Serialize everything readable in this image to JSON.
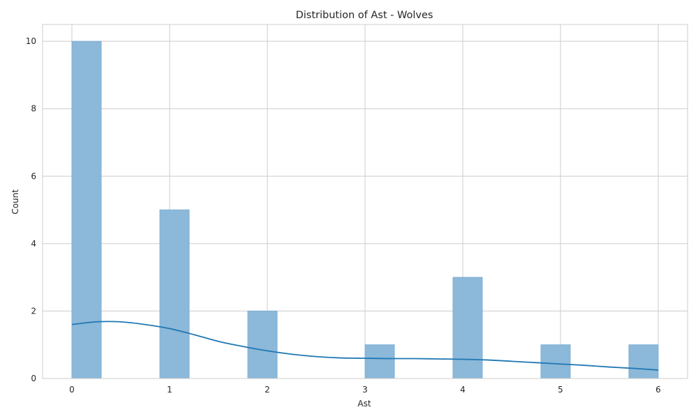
{
  "chart_data": {
    "type": "bar",
    "title": "Distribution of Ast - Wolves",
    "xlabel": "Ast",
    "ylabel": "Count",
    "xlim": [
      -0.3,
      6.3
    ],
    "ylim": [
      0,
      10.5
    ],
    "x_ticks": [
      "0",
      "1",
      "2",
      "3",
      "4",
      "5",
      "6"
    ],
    "y_ticks": [
      "0",
      "2",
      "4",
      "6",
      "8",
      "10"
    ],
    "grid": true,
    "bins": [
      {
        "x0": 0.0,
        "x1": 0.3,
        "value": 10
      },
      {
        "x0": 0.9,
        "x1": 1.2,
        "value": 5
      },
      {
        "x0": 1.8,
        "x1": 2.1,
        "value": 2
      },
      {
        "x0": 3.0,
        "x1": 3.3,
        "value": 1
      },
      {
        "x0": 3.9,
        "x1": 4.2,
        "value": 3
      },
      {
        "x0": 4.8,
        "x1": 5.1,
        "value": 1
      },
      {
        "x0": 5.7,
        "x1": 6.0,
        "value": 1
      }
    ],
    "kde": {
      "x": [
        0,
        0.25,
        0.5,
        0.75,
        1,
        1.25,
        1.5,
        1.75,
        2,
        2.25,
        2.5,
        2.75,
        3,
        3.25,
        3.5,
        3.75,
        4,
        4.25,
        4.5,
        4.75,
        5,
        5.25,
        5.5,
        5.75,
        6
      ],
      "y": [
        1.6,
        1.68,
        1.68,
        1.6,
        1.48,
        1.3,
        1.1,
        0.95,
        0.82,
        0.72,
        0.65,
        0.61,
        0.6,
        0.59,
        0.59,
        0.58,
        0.57,
        0.55,
        0.51,
        0.47,
        0.43,
        0.39,
        0.34,
        0.3,
        0.25
      ]
    },
    "colors": {
      "bar_fill": "#8cb8d9",
      "bar_stroke": "#7fb0d4",
      "kde_line": "#1f77b4",
      "grid": "#cccccc"
    }
  }
}
